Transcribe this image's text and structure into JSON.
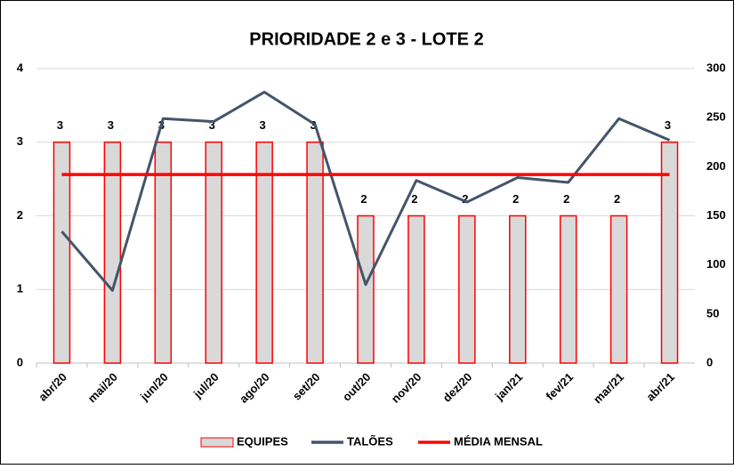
{
  "chart_data": {
    "type": "bar-line",
    "title": "PRIORIDADE 2 e 3 - LOTE 2",
    "categories": [
      "abr/20",
      "mai/20",
      "jun/20",
      "jul/20",
      "ago/20",
      "set/20",
      "out/20",
      "nov/20",
      "dez/20",
      "jan/21",
      "fev/21",
      "mar/21",
      "abr/21"
    ],
    "series": [
      {
        "name": "EQUIPES",
        "type": "bar",
        "color": "#d9d9d9",
        "edge": "#ff0000",
        "values": [
          3,
          3,
          3,
          3,
          3,
          3,
          2,
          2,
          2,
          2,
          2,
          2,
          3
        ]
      },
      {
        "name": "TALÕES",
        "type": "line",
        "axis": "y2",
        "color": "#44546a",
        "values": [
          134,
          74,
          249,
          246,
          276,
          243,
          80,
          186,
          164,
          189,
          184,
          249,
          227
        ]
      },
      {
        "name": "MÉDIA MENSAL",
        "type": "line",
        "axis": "y2",
        "color": "#ff0000",
        "values": [
          192,
          192,
          192,
          192,
          192,
          192,
          192,
          192,
          192,
          192,
          192,
          192,
          192
        ]
      }
    ],
    "ylim": [
      0,
      4
    ],
    "yticks": [
      0,
      1,
      2,
      3,
      4
    ],
    "y2lim": [
      0,
      300
    ],
    "y2ticks": [
      0,
      50,
      100,
      150,
      200,
      250,
      300
    ],
    "legend": "bottom"
  }
}
